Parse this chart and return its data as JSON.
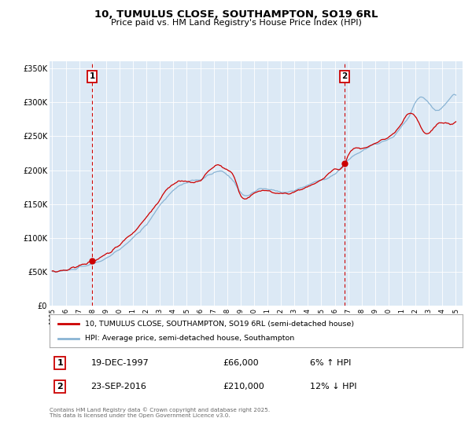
{
  "title": "10, TUMULUS CLOSE, SOUTHAMPTON, SO19 6RL",
  "subtitle": "Price paid vs. HM Land Registry's House Price Index (HPI)",
  "bg_color": "#dce9f5",
  "line1_color": "#cc0000",
  "line2_color": "#8ab4d4",
  "vline_color": "#cc0000",
  "vline1_x": 1997.97,
  "vline2_x": 2016.73,
  "marker1_x": 1997.97,
  "marker1_y": 66000,
  "marker2_x": 2016.73,
  "marker2_y": 210000,
  "legend1": "10, TUMULUS CLOSE, SOUTHAMPTON, SO19 6RL (semi-detached house)",
  "legend2": "HPI: Average price, semi-detached house, Southampton",
  "note1_num": "1",
  "note1_date": "19-DEC-1997",
  "note1_price": "£66,000",
  "note1_hpi": "6% ↑ HPI",
  "note2_num": "2",
  "note2_date": "23-SEP-2016",
  "note2_price": "£210,000",
  "note2_hpi": "12% ↓ HPI",
  "footer": "Contains HM Land Registry data © Crown copyright and database right 2025.\nThis data is licensed under the Open Government Licence v3.0.",
  "ylim": [
    0,
    360000
  ],
  "xlim": [
    1994.8,
    2025.5
  ],
  "yticks": [
    0,
    50000,
    100000,
    150000,
    200000,
    250000,
    300000,
    350000
  ],
  "ytick_labels": [
    "£0",
    "£50K",
    "£100K",
    "£150K",
    "£200K",
    "£250K",
    "£300K",
    "£350K"
  ]
}
